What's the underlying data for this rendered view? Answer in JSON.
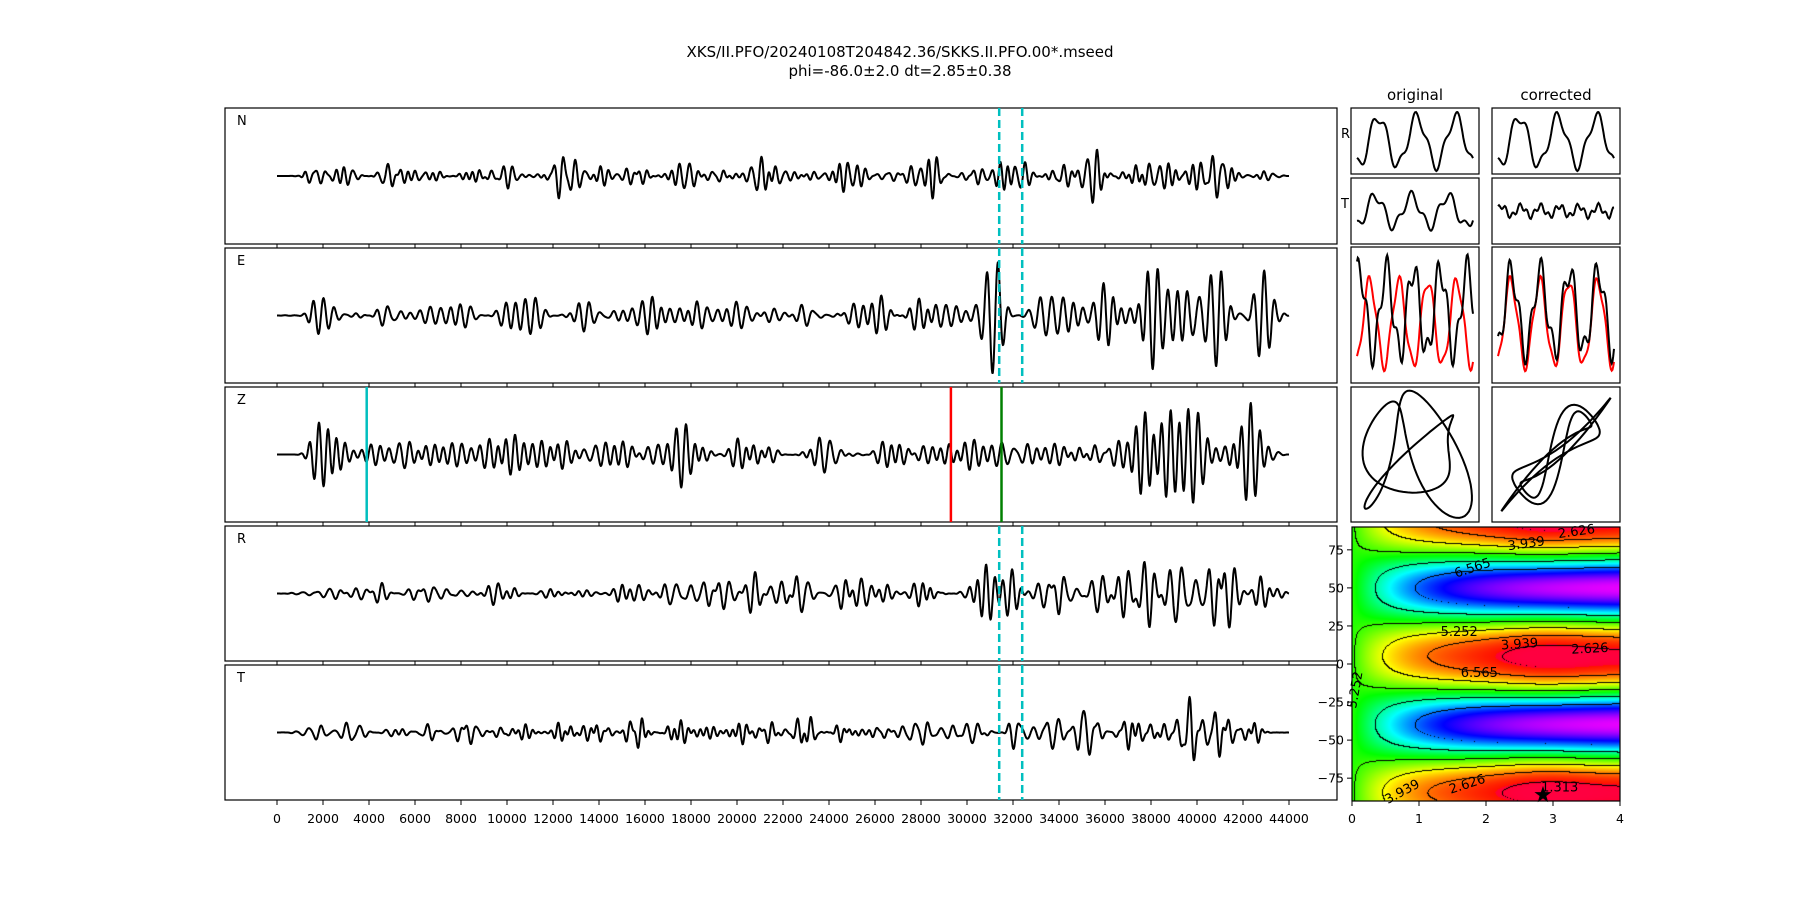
{
  "title": {
    "line1": "XKS/II.PFO/20240108T204842.36/SKKS.II.PFO.00*.mseed",
    "line2": "phi=-86.0±2.0 dt=2.85±0.38"
  },
  "chart_data": {
    "type": "line",
    "traces": [
      {
        "label": "N",
        "markers": "window"
      },
      {
        "label": "E",
        "markers": "window"
      },
      {
        "label": "Z",
        "markers": "picks"
      },
      {
        "label": "R",
        "markers": "window"
      },
      {
        "label": "T",
        "markers": "window"
      }
    ],
    "x_range": [
      -1900,
      46400
    ],
    "x_ticks": [
      "0",
      "2000",
      "4000",
      "6000",
      "8000",
      "10000",
      "12000",
      "14000",
      "16000",
      "18000",
      "20000",
      "22000",
      "24000",
      "26000",
      "28000",
      "30000",
      "32000",
      "34000",
      "36000",
      "38000",
      "40000",
      "42000",
      "44000"
    ],
    "window": [
      31400,
      32400
    ],
    "picks": [
      {
        "x": 3900,
        "color": "#00bfbf"
      },
      {
        "x": 29300,
        "color": "#ff0000"
      },
      {
        "x": 31500,
        "color": "#008000"
      }
    ],
    "colors": {
      "trace": "#000000",
      "window": "#00bfbf",
      "overlay": "#ff0000"
    },
    "small_panels": {
      "column_titles": [
        "original",
        "corrected"
      ],
      "row_labels": [
        "R",
        "T"
      ]
    },
    "grid_search": {
      "type": "heatmap",
      "x_range": [
        0,
        4
      ],
      "y_range": [
        -90,
        90
      ],
      "x_ticks": [
        "0",
        "1",
        "2",
        "3",
        "4"
      ],
      "y_ticks": [
        {
          "v": 75,
          "label": "75"
        },
        {
          "v": 50,
          "label": "50"
        },
        {
          "v": 25,
          "label": "25"
        },
        {
          "v": 0,
          "label": "0"
        },
        {
          "v": -25,
          "label": "−25"
        },
        {
          "v": -50,
          "label": "−50"
        },
        {
          "v": -75,
          "label": "−75"
        }
      ],
      "contour_levels": [
        1.313,
        2.626,
        3.939,
        5.252,
        6.565
      ],
      "contour_labels": [
        {
          "text": "2.626",
          "dt": 3.35,
          "phi": 87,
          "rot": -8
        },
        {
          "text": "3.939",
          "dt": 2.6,
          "phi": 79,
          "rot": -8
        },
        {
          "text": "6.565",
          "dt": 1.8,
          "phi": 63,
          "rot": -18
        },
        {
          "text": "5.252",
          "dt": 1.6,
          "phi": 21,
          "rot": 0
        },
        {
          "text": "3.939",
          "dt": 2.5,
          "phi": 13,
          "rot": -4
        },
        {
          "text": "2.626",
          "dt": 3.55,
          "phi": 10,
          "rot": -3
        },
        {
          "text": "6.565",
          "dt": 1.9,
          "phi": -6,
          "rot": 0
        },
        {
          "text": "5.252",
          "dt": 0.05,
          "phi": -17,
          "rot": -80
        },
        {
          "text": "3.939",
          "dt": 0.75,
          "phi": -84,
          "rot": -28
        },
        {
          "text": "2.626",
          "dt": 1.72,
          "phi": -79,
          "rot": -18
        },
        {
          "text": "1.313",
          "dt": 3.1,
          "phi": -81,
          "rot": 0
        }
      ],
      "best": {
        "dt": 2.85,
        "phi": -86.0
      }
    }
  }
}
